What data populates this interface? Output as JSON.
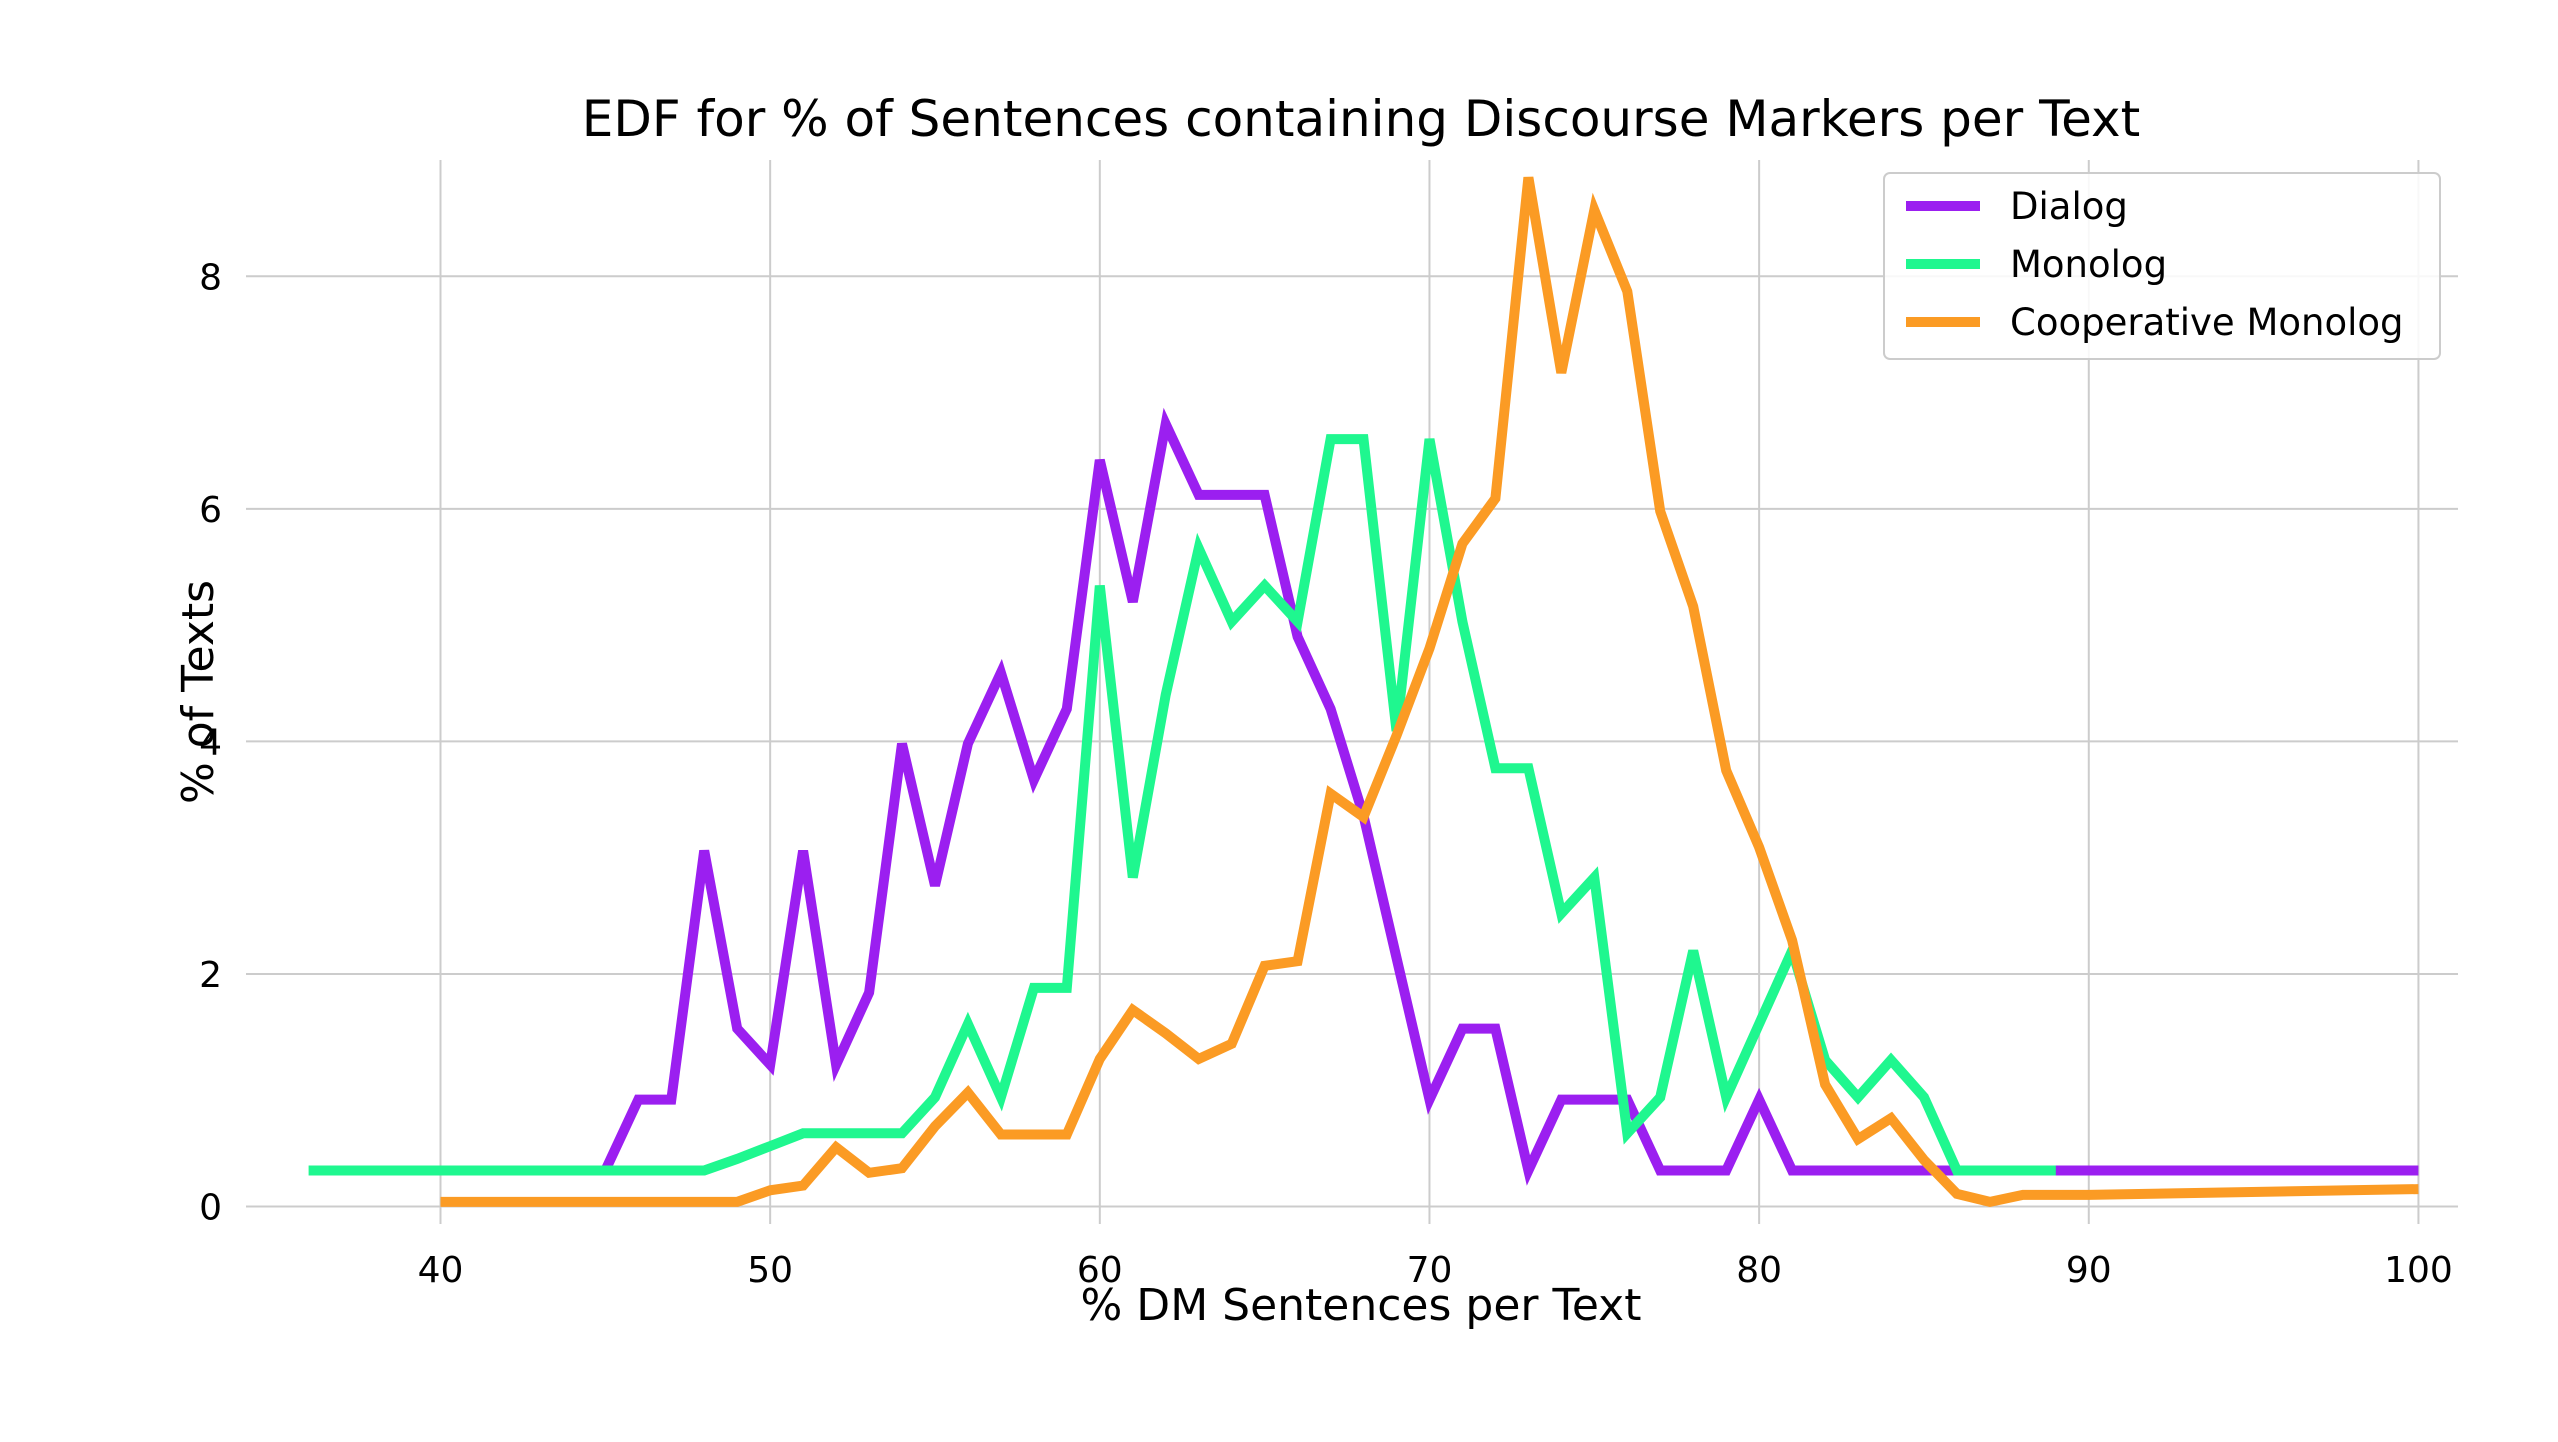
{
  "chart_data": {
    "type": "line",
    "title": "EDF for % of Sentences containing Discourse Markers per Text",
    "xlabel": "% DM Sentences per Text",
    "ylabel": "% of Texts",
    "xlim": [
      34.1,
      101.2
    ],
    "ylim": [
      -0.15,
      9.0
    ],
    "xticks": [
      40,
      50,
      60,
      70,
      80,
      90,
      100
    ],
    "yticks": [
      0,
      2,
      4,
      6,
      8
    ],
    "grid": true,
    "legend_position": "top-right",
    "series": [
      {
        "name": "Dialog",
        "color": "#9b1ff0",
        "x": [
          40,
          41,
          42,
          43,
          44,
          45,
          46,
          47,
          48,
          49,
          50,
          51,
          52,
          53,
          54,
          55,
          56,
          57,
          58,
          59,
          60,
          61,
          62,
          63,
          64,
          65,
          66,
          67,
          68,
          69,
          70,
          71,
          72,
          73,
          74,
          75,
          76,
          77,
          78,
          79,
          80,
          81,
          82,
          83,
          84,
          85,
          86,
          87,
          88,
          89,
          90,
          91,
          92,
          93,
          94,
          95,
          96,
          97,
          98,
          99,
          100
        ],
        "y": [
          0.31,
          0.31,
          0.31,
          0.31,
          0.31,
          0.31,
          0.92,
          0.92,
          3.06,
          1.53,
          1.22,
          3.06,
          1.22,
          1.84,
          3.98,
          2.76,
          3.98,
          4.59,
          3.67,
          4.28,
          6.42,
          5.2,
          6.73,
          6.12,
          6.12,
          6.12,
          4.9,
          4.28,
          3.36,
          2.14,
          0.92,
          1.53,
          1.53,
          0.31,
          0.92,
          0.92,
          0.92,
          0.31,
          0.31,
          0.31,
          0.92,
          0.31,
          0.31,
          0.31,
          0.31,
          0.31,
          0.31,
          0.31,
          0.31,
          0.31,
          0.31,
          0.31,
          0.31,
          0.31,
          0.31,
          0.31,
          0.31,
          0.31,
          0.31,
          0.31,
          0.31
        ]
      },
      {
        "name": "Monolog",
        "color": "#1ff78f",
        "x": [
          36,
          37,
          38,
          39,
          40,
          41,
          42,
          43,
          44,
          45,
          46,
          47,
          48,
          49,
          50,
          51,
          52,
          53,
          54,
          55,
          56,
          57,
          58,
          59,
          60,
          61,
          62,
          63,
          64,
          65,
          66,
          67,
          68,
          69,
          70,
          71,
          72,
          73,
          74,
          75,
          76,
          77,
          78,
          79,
          80,
          81,
          82,
          83,
          84,
          85,
          86,
          87,
          88,
          89
        ],
        "y": [
          0.31,
          0.31,
          0.31,
          0.31,
          0.31,
          0.31,
          0.31,
          0.31,
          0.31,
          0.31,
          0.31,
          0.31,
          0.31,
          0.41,
          0.52,
          0.63,
          0.63,
          0.63,
          0.63,
          0.94,
          1.57,
          0.94,
          1.88,
          1.88,
          5.34,
          2.83,
          4.4,
          5.66,
          5.03,
          5.34,
          5.03,
          6.6,
          6.6,
          4.09,
          6.6,
          5.03,
          3.77,
          3.77,
          2.52,
          2.83,
          0.63,
          0.94,
          2.2,
          0.94,
          1.57,
          2.2,
          1.26,
          0.94,
          1.26,
          0.94,
          0.31,
          0.31,
          0.31,
          0.31
        ]
      },
      {
        "name": "Cooperative Monolog",
        "color": "#fb9b24",
        "x": [
          40,
          41,
          42,
          43,
          44,
          45,
          46,
          47,
          48,
          49,
          50,
          51,
          52,
          53,
          54,
          55,
          56,
          57,
          58,
          59,
          60,
          61,
          62,
          63,
          64,
          65,
          66,
          67,
          68,
          69,
          70,
          71,
          72,
          73,
          74,
          75,
          76,
          77,
          78,
          79,
          80,
          81,
          82,
          83,
          84,
          85,
          86,
          87,
          88,
          89,
          90,
          100
        ],
        "y": [
          0.04,
          0.04,
          0.04,
          0.04,
          0.04,
          0.04,
          0.04,
          0.04,
          0.04,
          0.04,
          0.14,
          0.18,
          0.51,
          0.29,
          0.33,
          0.69,
          0.98,
          0.62,
          0.62,
          0.62,
          1.27,
          1.69,
          1.49,
          1.27,
          1.4,
          2.07,
          2.11,
          3.55,
          3.35,
          4.05,
          4.8,
          5.7,
          6.09,
          8.85,
          7.17,
          8.57,
          7.87,
          5.98,
          5.16,
          3.75,
          3.09,
          2.29,
          1.05,
          0.58,
          0.76,
          0.4,
          0.11,
          0.04,
          0.1,
          0.1,
          0.1,
          0.15
        ]
      }
    ]
  }
}
